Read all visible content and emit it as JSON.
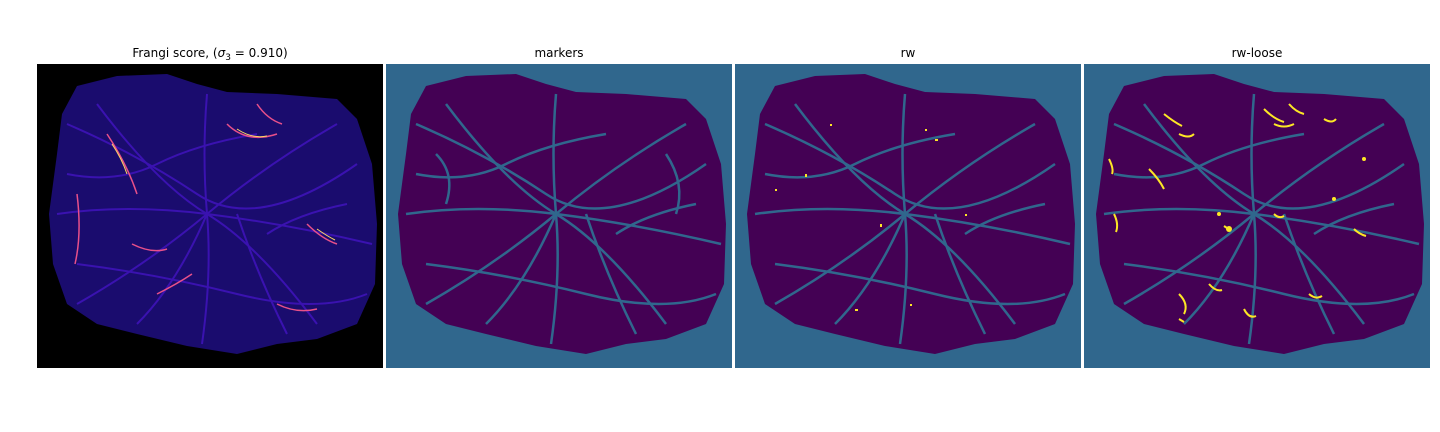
{
  "figure": {
    "panels": [
      {
        "id": "frangi",
        "title": "Frangi score, (",
        "title_symbol": "σ",
        "title_subscript": "3",
        "title_suffix": " = 0.910)",
        "colors": {
          "background": "#000000",
          "tissue": "#1a0c6e",
          "network": "#3a12b0",
          "highlight": "#e8508a",
          "bright": "#fbd765"
        }
      },
      {
        "id": "markers",
        "title": "markers",
        "colors": {
          "background": "#30678d",
          "tissue": "#440154",
          "network": "#30678d"
        }
      },
      {
        "id": "rw",
        "title": "rw",
        "colors": {
          "background": "#30678d",
          "tissue": "#440154",
          "network": "#30678d",
          "highlight": "#fde725"
        }
      },
      {
        "id": "rw-loose",
        "title": "rw-loose",
        "colors": {
          "background": "#30678d",
          "tissue": "#440154",
          "network": "#30678d",
          "highlight": "#fde725"
        }
      }
    ]
  }
}
